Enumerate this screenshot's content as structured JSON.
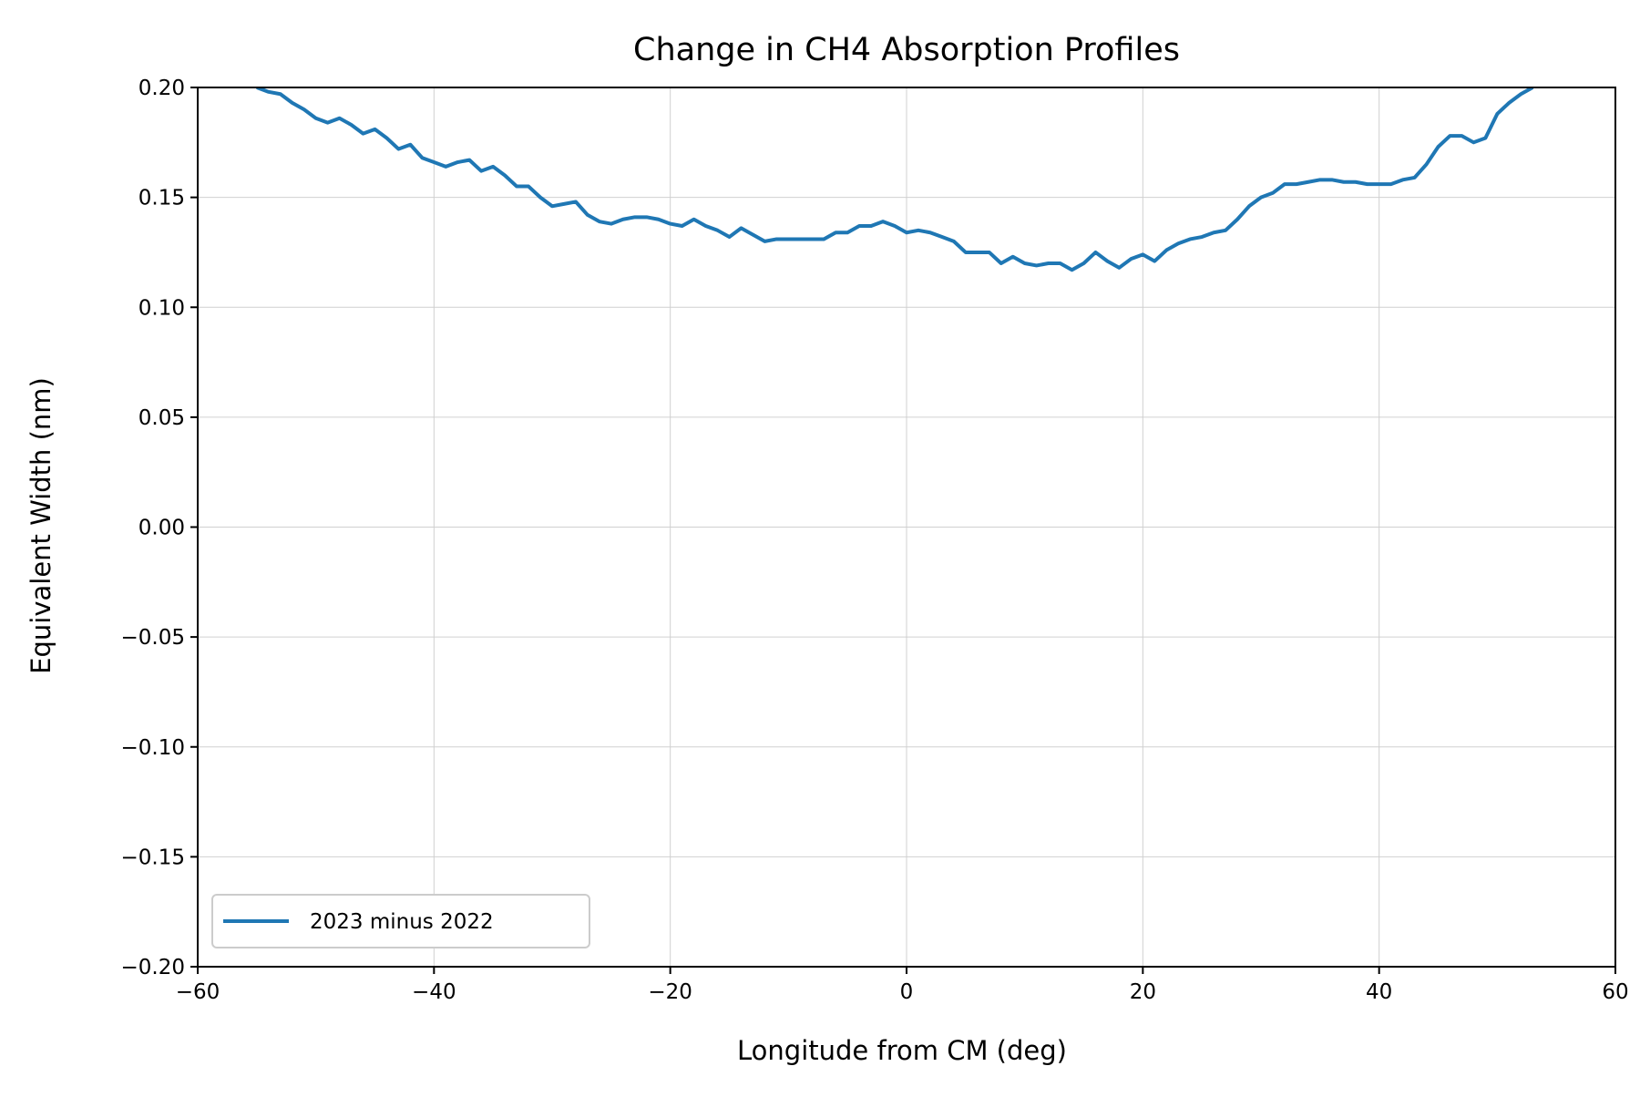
{
  "chart_data": {
    "type": "line",
    "title": "Change in CH4 Absorption Profiles",
    "xlabel": "Longitude from CM (deg)",
    "ylabel": "Equivalent Width (nm)",
    "xlim": [
      -60,
      60
    ],
    "ylim": [
      -0.2,
      0.2
    ],
    "xticks": [
      -60,
      -40,
      -20,
      0,
      20,
      40,
      60
    ],
    "xtick_labels": [
      "−60",
      "−40",
      "−20",
      "0",
      "20",
      "40",
      "60"
    ],
    "yticks": [
      -0.2,
      -0.15,
      -0.1,
      -0.05,
      0.0,
      0.05,
      0.1,
      0.15,
      0.2
    ],
    "ytick_labels": [
      "−0.20",
      "−0.15",
      "−0.10",
      "−0.05",
      "0.00",
      "0.05",
      "0.10",
      "0.15",
      "0.20"
    ],
    "grid": true,
    "legend": {
      "location": "lower-left",
      "entries": [
        "2023 minus 2022"
      ]
    },
    "series": [
      {
        "name": "2023 minus 2022",
        "color": "#1f77b4",
        "x": [
          -55,
          -54,
          -53,
          -52,
          -51,
          -50,
          -49,
          -48,
          -47,
          -46,
          -45,
          -44,
          -43,
          -42,
          -41,
          -40,
          -39,
          -38,
          -37,
          -36,
          -35,
          -34,
          -33,
          -32,
          -31,
          -30,
          -29,
          -28,
          -27,
          -26,
          -25,
          -24,
          -23,
          -22,
          -21,
          -20,
          -19,
          -18,
          -17,
          -16,
          -15,
          -14,
          -13,
          -12,
          -11,
          -10,
          -9,
          -8,
          -7,
          -6,
          -5,
          -4,
          -3,
          -2,
          -1,
          0,
          1,
          2,
          3,
          4,
          5,
          6,
          7,
          8,
          9,
          10,
          11,
          12,
          13,
          14,
          15,
          16,
          17,
          18,
          19,
          20,
          21,
          22,
          23,
          24,
          25,
          26,
          27,
          28,
          29,
          30,
          31,
          32,
          33,
          34,
          35,
          36,
          37,
          38,
          39,
          40,
          41,
          42,
          43,
          44,
          45,
          46,
          47,
          48,
          49,
          50,
          51,
          52,
          53
        ],
        "y": [
          0.2,
          0.198,
          0.197,
          0.193,
          0.19,
          0.186,
          0.184,
          0.186,
          0.183,
          0.179,
          0.181,
          0.177,
          0.172,
          0.174,
          0.168,
          0.166,
          0.164,
          0.166,
          0.167,
          0.162,
          0.164,
          0.16,
          0.155,
          0.155,
          0.15,
          0.146,
          0.147,
          0.148,
          0.142,
          0.139,
          0.138,
          0.14,
          0.141,
          0.141,
          0.14,
          0.138,
          0.137,
          0.14,
          0.137,
          0.135,
          0.132,
          0.136,
          0.133,
          0.13,
          0.131,
          0.131,
          0.131,
          0.131,
          0.131,
          0.134,
          0.134,
          0.137,
          0.137,
          0.139,
          0.137,
          0.134,
          0.135,
          0.134,
          0.132,
          0.13,
          0.125,
          0.125,
          0.125,
          0.12,
          0.123,
          0.12,
          0.119,
          0.12,
          0.12,
          0.117,
          0.12,
          0.125,
          0.121,
          0.118,
          0.122,
          0.124,
          0.121,
          0.126,
          0.129,
          0.131,
          0.132,
          0.134,
          0.135,
          0.14,
          0.146,
          0.15,
          0.152,
          0.156,
          0.156,
          0.157,
          0.158,
          0.158,
          0.157,
          0.157,
          0.156,
          0.156,
          0.156,
          0.158,
          0.159,
          0.165,
          0.173,
          0.178,
          0.178,
          0.175,
          0.177,
          0.188,
          0.193,
          0.197,
          0.2
        ]
      }
    ]
  }
}
